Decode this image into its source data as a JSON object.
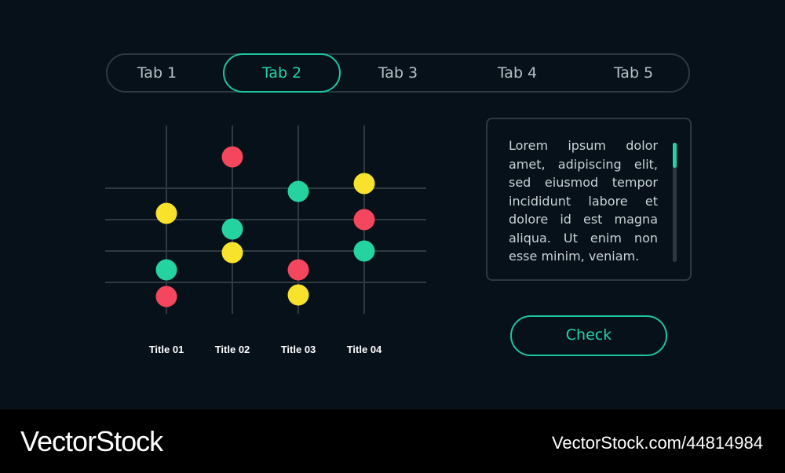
{
  "tabs": [
    {
      "label": "Tab 1",
      "active": false
    },
    {
      "label": "Tab 2",
      "active": true
    },
    {
      "label": "Tab 3",
      "active": false
    },
    {
      "label": "Tab 4",
      "active": false
    },
    {
      "label": "Tab 5",
      "active": false
    }
  ],
  "chart_data": {
    "type": "scatter",
    "categories": [
      "Title 01",
      "Title 02",
      "Title 03",
      "Title 04"
    ],
    "ylim": [
      0,
      6
    ],
    "grid": true,
    "points": [
      {
        "category": "Title 01",
        "value": 3.2,
        "color": "#f9e22c"
      },
      {
        "category": "Title 01",
        "value": 1.4,
        "color": "#24d39f"
      },
      {
        "category": "Title 01",
        "value": 0.55,
        "color": "#f4465c"
      },
      {
        "category": "Title 02",
        "value": 5.0,
        "color": "#f4465c"
      },
      {
        "category": "Title 02",
        "value": 2.7,
        "color": "#24d39f"
      },
      {
        "category": "Title 02",
        "value": 1.95,
        "color": "#f9e22c"
      },
      {
        "category": "Title 03",
        "value": 3.9,
        "color": "#24d39f"
      },
      {
        "category": "Title 03",
        "value": 1.4,
        "color": "#f4465c"
      },
      {
        "category": "Title 03",
        "value": 0.6,
        "color": "#f9e22c"
      },
      {
        "category": "Title 04",
        "value": 4.15,
        "color": "#f9e22c"
      },
      {
        "category": "Title 04",
        "value": 3.0,
        "color": "#f4465c"
      },
      {
        "category": "Title 04",
        "value": 2.0,
        "color": "#24d39f"
      }
    ]
  },
  "textbox": {
    "text": "Lorem ipsum dolor amet, adipiscing elit, sed eiusmod tempor incididunt labore et dolore id est magna aliqua. Ut enim non esse minim, veniam."
  },
  "check_button": {
    "label": "Check"
  },
  "colors": {
    "accent": "#1ec5a2",
    "red": "#f4465c",
    "yellow": "#f9e22c",
    "green": "#24d39f"
  },
  "footer": {
    "brand": "VectorStock",
    "ref": "VectorStock.com/44814984"
  }
}
